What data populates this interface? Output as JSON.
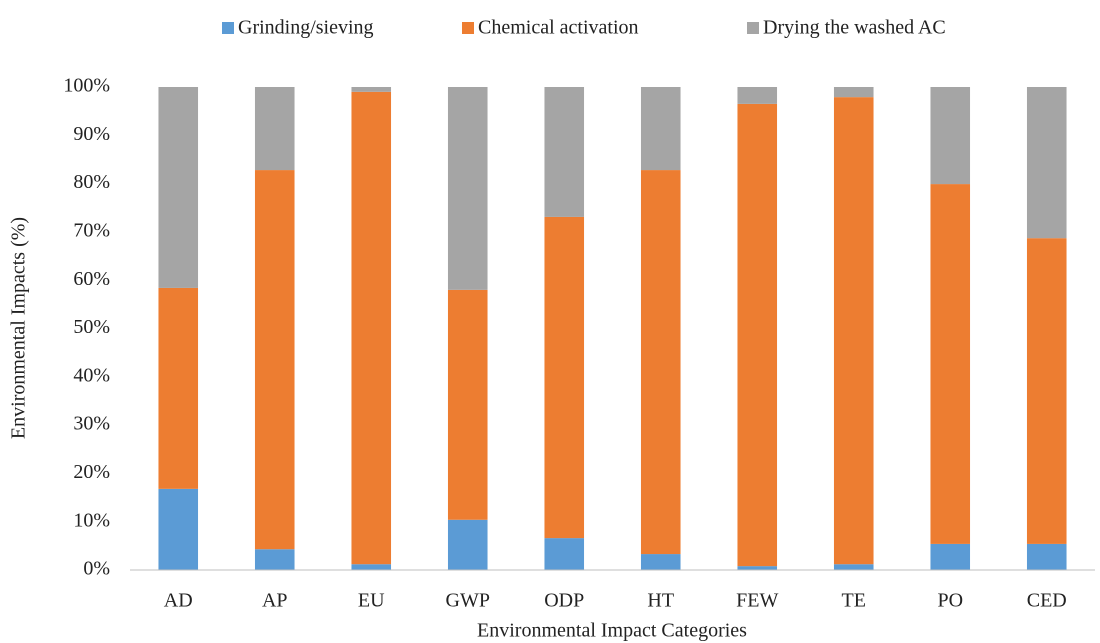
{
  "chart_data": {
    "type": "stacked_bar",
    "x_label": "Environmental Impact Categories",
    "y_label": "Environmental Impacts (%)",
    "categories": [
      "AD",
      "AP",
      "EU",
      "GWP",
      "ODP",
      "HT",
      "FEW",
      "TE",
      "PO",
      "CED"
    ],
    "series": [
      {
        "name": "Grinding/sieving",
        "color": "#5b9bd5",
        "values": [
          16.8,
          4.3,
          1.2,
          10.4,
          6.6,
          3.3,
          0.8,
          1.2,
          5.4,
          5.4
        ]
      },
      {
        "name": "Chemical activation",
        "color": "#ed7d31",
        "values": [
          41.6,
          78.5,
          97.8,
          47.6,
          66.5,
          79.5,
          95.7,
          96.7,
          74.5,
          63.3
        ]
      },
      {
        "name": "Drying the washed AC",
        "color": "#a5a5a5",
        "values": [
          41.6,
          17.2,
          1.0,
          42.0,
          26.9,
          17.2,
          3.5,
          2.1,
          20.1,
          31.3
        ]
      }
    ],
    "ylim": [
      0,
      100
    ],
    "yticks": [
      {
        "value": 0,
        "label": "0%"
      },
      {
        "value": 10,
        "label": "10%"
      },
      {
        "value": 20,
        "label": "20%"
      },
      {
        "value": 30,
        "label": "30%"
      },
      {
        "value": 40,
        "label": "40%"
      },
      {
        "value": 50,
        "label": "50%"
      },
      {
        "value": 60,
        "label": "60%"
      },
      {
        "value": 70,
        "label": "70%"
      },
      {
        "value": 80,
        "label": "80%"
      },
      {
        "value": 90,
        "label": "90%"
      },
      {
        "value": 100,
        "label": "100%"
      }
    ],
    "grid": false,
    "legend_position": "top"
  }
}
